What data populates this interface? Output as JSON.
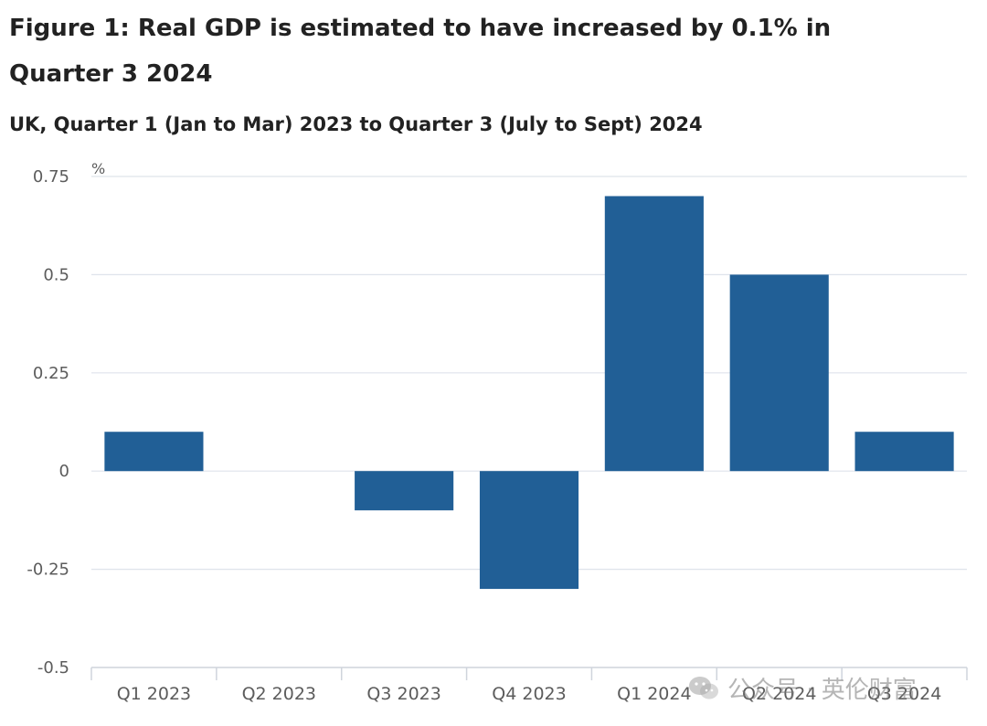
{
  "header": {
    "title": "Figure 1: Real GDP is estimated to have increased by 0.1% in Quarter 3 2024",
    "subtitle": "UK, Quarter 1 (Jan to Mar) 2023 to Quarter 3 (July to Sept) 2024"
  },
  "watermark": {
    "text": "公众号 · 英伦财富"
  },
  "colors": {
    "bar": "#215f96",
    "grid": "#dfe3eb",
    "axis_text": "#5c5c5c"
  },
  "chart_data": {
    "type": "bar",
    "title": "Figure 1: Real GDP is estimated to have increased by 0.1% in Quarter 3 2024",
    "subtitle": "UK, Quarter 1 (Jan to Mar) 2023 to Quarter 3 (July to Sept) 2024",
    "ylabel": "%",
    "xlabel": "",
    "categories": [
      "Q1 2023",
      "Q2 2023",
      "Q3 2023",
      "Q4 2023",
      "Q1 2024",
      "Q2 2024",
      "Q3 2024"
    ],
    "values": [
      0.1,
      0.0,
      -0.1,
      -0.3,
      0.7,
      0.5,
      0.1
    ],
    "ylim": [
      -0.5,
      0.75
    ],
    "yticks": [
      0.75,
      0.5,
      0.25,
      0,
      -0.25,
      -0.5
    ],
    "ytick_labels": [
      "0.75",
      "0.5",
      "0.25",
      "0",
      "-0.25",
      "-0.5"
    ],
    "grid": true,
    "legend": "none"
  }
}
